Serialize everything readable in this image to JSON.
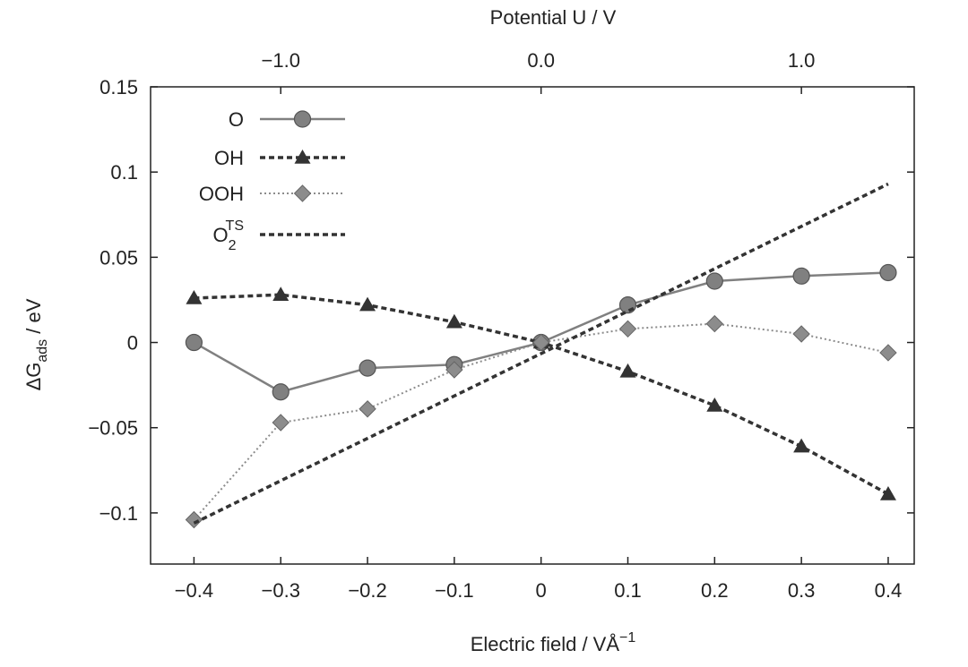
{
  "chart_data": {
    "type": "line",
    "xlabel": "Electric field / VÅ",
    "xlabel_sup": "−1",
    "ylabel_main": "ΔG",
    "ylabel_sub": "ads",
    "ylabel_tail": " / eV",
    "top_axis_title": "Potential U / V",
    "xlim": [
      -0.45,
      0.43
    ],
    "ylim": [
      -0.13,
      0.15
    ],
    "x_ticks": [
      -0.4,
      -0.3,
      -0.2,
      -0.1,
      0,
      0.1,
      0.2,
      0.3,
      0.4
    ],
    "x_tick_labels": [
      "−0.4",
      "−0.3",
      "−0.2",
      "−0.1",
      "0",
      "0.1",
      "0.2",
      "0.3",
      "0.4"
    ],
    "y_ticks": [
      0.15,
      0.1,
      0.05,
      0,
      -0.05,
      -0.1
    ],
    "y_tick_labels": [
      "0.15",
      "0.1",
      "0.05",
      "0",
      "−0.05",
      "−0.1"
    ],
    "top_ticks_field": [
      -0.3,
      0.0,
      0.3
    ],
    "top_tick_labels": [
      "−1.0",
      "0.0",
      "1.0"
    ],
    "grid": false,
    "legend_position": "top-left",
    "x": [
      -0.4,
      -0.3,
      -0.2,
      -0.1,
      0,
      0.1,
      0.2,
      0.3,
      0.4
    ],
    "series": [
      {
        "name": "O",
        "label_sup": "",
        "label_sub": "",
        "marker": "circle",
        "dash": "solid",
        "color": "#808080",
        "values": [
          0.0,
          -0.029,
          -0.015,
          -0.013,
          0.0,
          0.022,
          0.036,
          0.039,
          0.041
        ]
      },
      {
        "name": "OH",
        "label_sup": "",
        "label_sub": "",
        "marker": "triangle",
        "dash": "dotted",
        "color": "#333333",
        "values": [
          0.026,
          0.028,
          0.022,
          0.012,
          0.0,
          -0.017,
          -0.037,
          -0.061,
          -0.089
        ]
      },
      {
        "name": "OOH",
        "label_sup": "",
        "label_sub": "",
        "marker": "diamond",
        "dash": "fine-dotted",
        "color": "#8c8c8c",
        "values": [
          -0.104,
          -0.047,
          -0.039,
          -0.016,
          0.0,
          0.008,
          0.011,
          0.005,
          -0.006
        ]
      },
      {
        "name": "O",
        "label_sup": "TS",
        "label_sub": "2",
        "marker": "none",
        "dash": "dotted",
        "color": "#333333",
        "x": [
          -0.4,
          0.4
        ],
        "values": [
          -0.106,
          0.093
        ]
      }
    ]
  }
}
